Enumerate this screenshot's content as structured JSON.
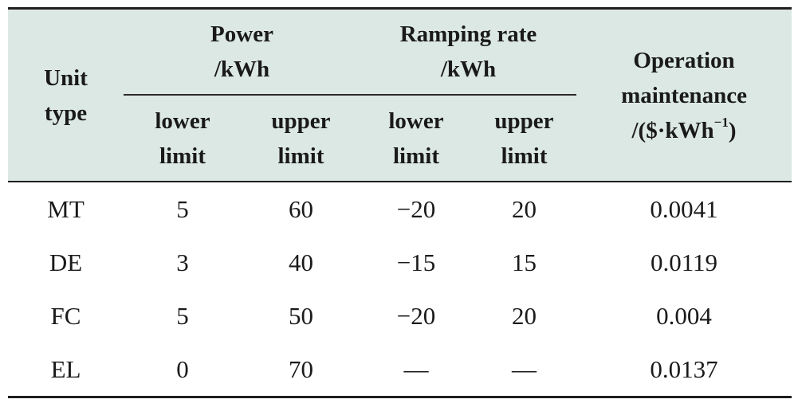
{
  "table": {
    "header": {
      "unit_type": [
        "Unit",
        "type"
      ],
      "power": [
        "Power",
        "/kWh"
      ],
      "ramping": [
        "Ramping rate",
        "/kWh"
      ],
      "om": {
        "line1": "Operation",
        "line2": "maintenance",
        "line3_pre": "/($·kWh",
        "line3_sup": "−1",
        "line3_post": ")"
      },
      "power_lower": [
        "lower",
        "limit"
      ],
      "power_upper": [
        "upper",
        "limit"
      ],
      "ramp_lower": [
        "lower",
        "limit"
      ],
      "ramp_upper": [
        "upper",
        "limit"
      ]
    },
    "rows": [
      [
        "MT",
        "5",
        "60",
        "−20",
        "20",
        "0.0041"
      ],
      [
        "DE",
        "3",
        "40",
        "−15",
        "15",
        "0.0119"
      ],
      [
        "FC",
        "5",
        "50",
        "−20",
        "20",
        "0.004"
      ],
      [
        "EL",
        "0",
        "70",
        "—",
        "—",
        "0.0137"
      ]
    ]
  }
}
